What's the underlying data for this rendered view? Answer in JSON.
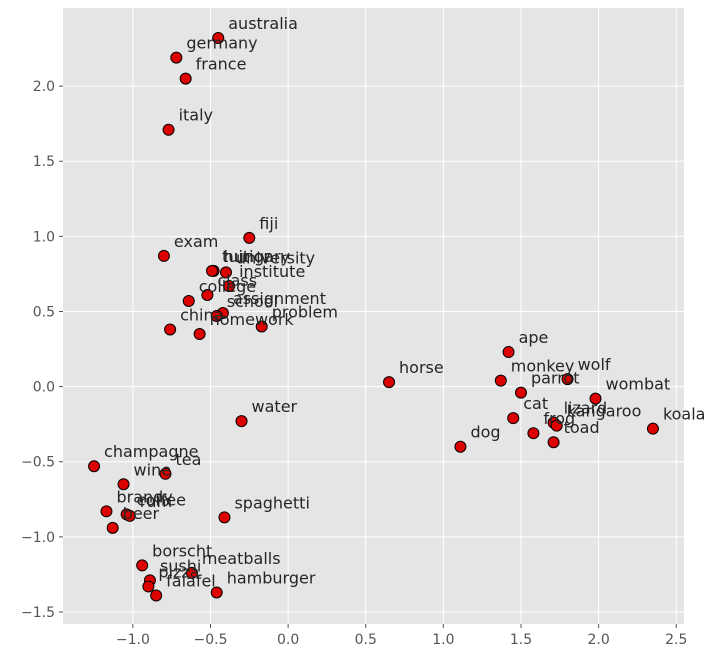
{
  "chart_data": {
    "type": "scatter",
    "title": "",
    "xlabel": "",
    "ylabel": "",
    "xlim": [
      -1.45,
      2.55
    ],
    "ylim": [
      -1.58,
      2.52
    ],
    "xticks": [
      -1.0,
      -0.5,
      0.0,
      0.5,
      1.0,
      1.5,
      2.0,
      2.5
    ],
    "xtick_labels": [
      "−1.0",
      "−0.5",
      "0.0",
      "0.5",
      "1.0",
      "1.5",
      "2.0",
      "2.5"
    ],
    "yticks": [
      -1.5,
      -1.0,
      -0.5,
      0.0,
      0.5,
      1.0,
      1.5,
      2.0
    ],
    "ytick_labels": [
      "−1.5",
      "−1.0",
      "−0.5",
      "0.0",
      "0.5",
      "1.0",
      "1.5",
      "2.0"
    ],
    "grid": true,
    "background": "#e5e5e5",
    "grid_color": "#ffffff",
    "marker_fill": "#dd0000",
    "marker_edge": "#000000",
    "points": [
      {
        "label": "australia",
        "x": -0.45,
        "y": 2.32
      },
      {
        "label": "germany",
        "x": -0.72,
        "y": 2.19
      },
      {
        "label": "france",
        "x": -0.66,
        "y": 2.05
      },
      {
        "label": "italy",
        "x": -0.77,
        "y": 1.71
      },
      {
        "label": "fiji",
        "x": -0.25,
        "y": 0.99
      },
      {
        "label": "exam",
        "x": -0.8,
        "y": 0.87
      },
      {
        "label": "hungary",
        "x": -0.48,
        "y": 0.77
      },
      {
        "label": "tuition",
        "x": -0.49,
        "y": 0.77
      },
      {
        "label": "university",
        "x": -0.4,
        "y": 0.76
      },
      {
        "label": "institute",
        "x": -0.38,
        "y": 0.67
      },
      {
        "label": "class",
        "x": -0.52,
        "y": 0.61
      },
      {
        "label": "college",
        "x": -0.64,
        "y": 0.57
      },
      {
        "label": "assignment",
        "x": -0.42,
        "y": 0.49
      },
      {
        "label": "school",
        "x": -0.46,
        "y": 0.47
      },
      {
        "label": "china",
        "x": -0.76,
        "y": 0.38
      },
      {
        "label": "homework",
        "x": -0.57,
        "y": 0.35
      },
      {
        "label": "problem",
        "x": -0.17,
        "y": 0.4
      },
      {
        "label": "water",
        "x": -0.3,
        "y": -0.23
      },
      {
        "label": "horse",
        "x": 0.65,
        "y": 0.03
      },
      {
        "label": "ape",
        "x": 1.42,
        "y": 0.23
      },
      {
        "label": "monkey",
        "x": 1.37,
        "y": 0.04
      },
      {
        "label": "parrot",
        "x": 1.5,
        "y": -0.04
      },
      {
        "label": "wolf",
        "x": 1.8,
        "y": 0.05
      },
      {
        "label": "wombat",
        "x": 1.98,
        "y": -0.08
      },
      {
        "label": "cat",
        "x": 1.45,
        "y": -0.21
      },
      {
        "label": "lizard",
        "x": 1.71,
        "y": -0.24
      },
      {
        "label": "kangaroo",
        "x": 1.73,
        "y": -0.26
      },
      {
        "label": "frog",
        "x": 1.58,
        "y": -0.31
      },
      {
        "label": "toad",
        "x": 1.71,
        "y": -0.37
      },
      {
        "label": "dog",
        "x": 1.11,
        "y": -0.4
      },
      {
        "label": "koala",
        "x": 2.35,
        "y": -0.28
      },
      {
        "label": "champagne",
        "x": -1.25,
        "y": -0.53
      },
      {
        "label": "tea",
        "x": -0.79,
        "y": -0.58
      },
      {
        "label": "wine",
        "x": -1.06,
        "y": -0.65
      },
      {
        "label": "brandy",
        "x": -1.17,
        "y": -0.83
      },
      {
        "label": "coffee",
        "x": -1.04,
        "y": -0.85
      },
      {
        "label": "rum",
        "x": -1.02,
        "y": -0.86
      },
      {
        "label": "beer",
        "x": -1.13,
        "y": -0.94
      },
      {
        "label": "spaghetti",
        "x": -0.41,
        "y": -0.87
      },
      {
        "label": "borscht",
        "x": -0.94,
        "y": -1.19
      },
      {
        "label": "sushi",
        "x": -0.89,
        "y": -1.29
      },
      {
        "label": "pizza",
        "x": -0.9,
        "y": -1.33
      },
      {
        "label": "falafel",
        "x": -0.85,
        "y": -1.39
      },
      {
        "label": "meatballs",
        "x": -0.62,
        "y": -1.24
      },
      {
        "label": "hamburger",
        "x": -0.46,
        "y": -1.37
      }
    ]
  }
}
